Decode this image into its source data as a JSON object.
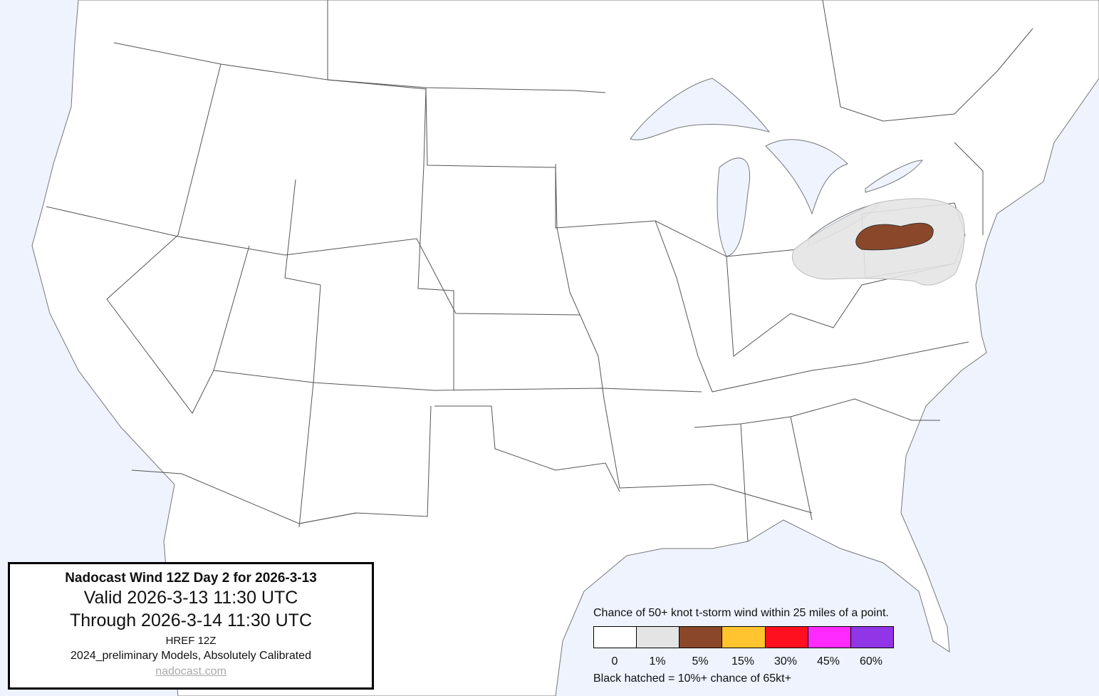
{
  "info": {
    "title": "Nadocast Wind 12Z Day 2 for 2026-3-13",
    "valid": "Valid 2026-3-13 11:30 UTC",
    "through": "Through 2026-3-14 11:30 UTC",
    "model": "HREF 12Z",
    "calibration": "2024_preliminary Models, Absolutely Calibrated",
    "link": "nadocast.com"
  },
  "legend": {
    "title": "Chance of 50+ knot t-storm wind within 25 miles of a point.",
    "bins": [
      {
        "label": "0",
        "color": "#ffffff"
      },
      {
        "label": "1%",
        "color": "#e4e4e4"
      },
      {
        "label": "5%",
        "color": "#8a472a"
      },
      {
        "label": "15%",
        "color": "#ffc42e"
      },
      {
        "label": "30%",
        "color": "#ff101e"
      },
      {
        "label": "45%",
        "color": "#ff2aff"
      },
      {
        "label": "60%",
        "color": "#9036e6"
      }
    ],
    "note": "Black hatched = 10%+ chance of 65kt+"
  },
  "colors": {
    "water": "#eef3fe",
    "land": "#ffffff",
    "borders": "#555555"
  },
  "forecast_areas": [
    {
      "level": "1%",
      "region": "Ohio / Pennsylvania / northern West Virginia"
    },
    {
      "level": "5%",
      "region": "western and central Pennsylvania"
    }
  ]
}
